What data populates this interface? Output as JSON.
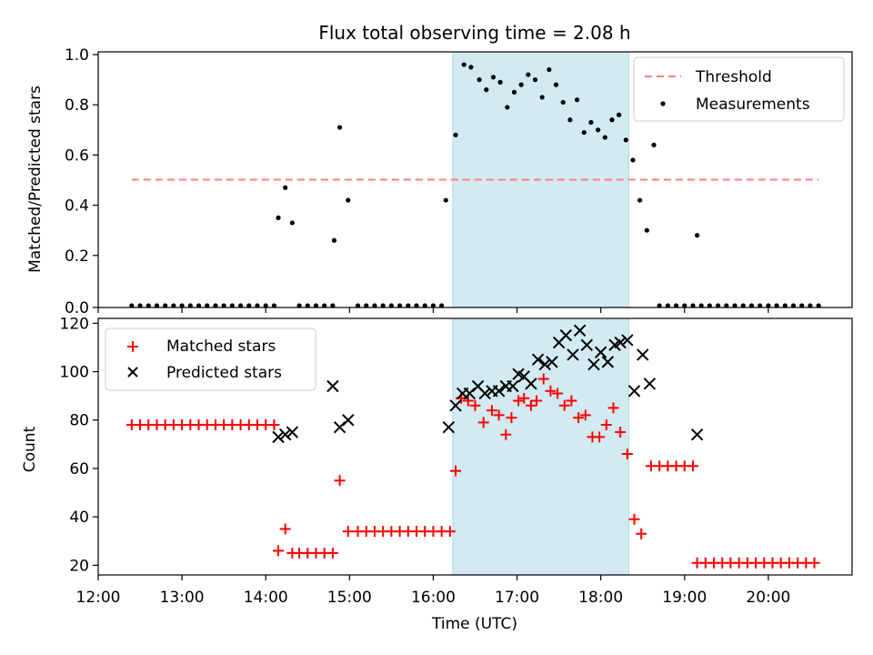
{
  "chart_data": [
    {
      "type": "scatter",
      "title": "Flux total observing time = 2.08 h",
      "xlabel": "",
      "ylabel": "Matched/Predicted stars",
      "xlim": [
        "12:00",
        "21:00"
      ],
      "ylim": [
        0,
        1.0
      ],
      "yticks": [
        "0.0",
        "0.2",
        "0.4",
        "0.6",
        "0.8",
        "1.0"
      ],
      "grid": false,
      "legend": "upper right",
      "highlight_span": [
        "16:14",
        "18:20"
      ],
      "threshold": {
        "name": "Threshold",
        "value": 0.5,
        "from": "12:24",
        "to": "20:36",
        "color": "#ff7f7f"
      },
      "series": [
        {
          "name": "Measurements",
          "color": "#000000",
          "marker": "dot",
          "points": [
            [
              "12:24",
              0
            ],
            [
              "12:30",
              0
            ],
            [
              "12:36",
              0
            ],
            [
              "12:42",
              0
            ],
            [
              "12:48",
              0
            ],
            [
              "12:54",
              0
            ],
            [
              "13:00",
              0
            ],
            [
              "13:06",
              0
            ],
            [
              "13:12",
              0
            ],
            [
              "13:18",
              0
            ],
            [
              "13:24",
              0
            ],
            [
              "13:30",
              0
            ],
            [
              "13:36",
              0
            ],
            [
              "13:42",
              0
            ],
            [
              "13:48",
              0
            ],
            [
              "13:54",
              0
            ],
            [
              "14:00",
              0
            ],
            [
              "14:06",
              0
            ],
            [
              "14:09",
              0.35
            ],
            [
              "14:14",
              0.47
            ],
            [
              "14:19",
              0.33
            ],
            [
              "14:24",
              0
            ],
            [
              "14:30",
              0
            ],
            [
              "14:36",
              0
            ],
            [
              "14:42",
              0
            ],
            [
              "14:48",
              0
            ],
            [
              "14:49",
              0.26
            ],
            [
              "14:53",
              0.71
            ],
            [
              "14:59",
              0.42
            ],
            [
              "15:06",
              0
            ],
            [
              "15:12",
              0
            ],
            [
              "15:18",
              0
            ],
            [
              "15:24",
              0
            ],
            [
              "15:30",
              0
            ],
            [
              "15:36",
              0
            ],
            [
              "15:42",
              0
            ],
            [
              "15:48",
              0
            ],
            [
              "15:54",
              0
            ],
            [
              "16:00",
              0
            ],
            [
              "16:06",
              0
            ],
            [
              "16:09",
              0.42
            ],
            [
              "16:16",
              0.68
            ],
            [
              "16:22",
              0.96
            ],
            [
              "16:27",
              0.95
            ],
            [
              "16:33",
              0.9
            ],
            [
              "16:38",
              0.86
            ],
            [
              "16:43",
              0.91
            ],
            [
              "16:48",
              0.89
            ],
            [
              "16:53",
              0.79
            ],
            [
              "16:58",
              0.85
            ],
            [
              "17:03",
              0.88
            ],
            [
              "17:08",
              0.92
            ],
            [
              "17:13",
              0.9
            ],
            [
              "17:18",
              0.83
            ],
            [
              "17:23",
              0.94
            ],
            [
              "17:28",
              0.88
            ],
            [
              "17:33",
              0.81
            ],
            [
              "17:38",
              0.74
            ],
            [
              "17:43",
              0.82
            ],
            [
              "17:48",
              0.69
            ],
            [
              "17:53",
              0.73
            ],
            [
              "17:58",
              0.7
            ],
            [
              "18:03",
              0.67
            ],
            [
              "18:08",
              0.74
            ],
            [
              "18:13",
              0.76
            ],
            [
              "18:18",
              0.66
            ],
            [
              "18:23",
              0.58
            ],
            [
              "18:28",
              0.42
            ],
            [
              "18:33",
              0.3
            ],
            [
              "18:38",
              0.64
            ],
            [
              "18:42",
              0
            ],
            [
              "18:48",
              0
            ],
            [
              "18:54",
              0
            ],
            [
              "19:00",
              0
            ],
            [
              "19:06",
              0
            ],
            [
              "19:09",
              0.28
            ],
            [
              "19:12",
              0
            ],
            [
              "19:18",
              0
            ],
            [
              "19:24",
              0
            ],
            [
              "19:30",
              0
            ],
            [
              "19:36",
              0
            ],
            [
              "19:42",
              0
            ],
            [
              "19:48",
              0
            ],
            [
              "19:54",
              0
            ],
            [
              "20:00",
              0
            ],
            [
              "20:06",
              0
            ],
            [
              "20:12",
              0
            ],
            [
              "20:18",
              0
            ],
            [
              "20:24",
              0
            ],
            [
              "20:30",
              0
            ],
            [
              "20:36",
              0
            ]
          ]
        }
      ]
    },
    {
      "type": "scatter",
      "title": "",
      "xlabel": "Time (UTC)",
      "ylabel": "Count",
      "xlim": [
        "12:00",
        "21:00"
      ],
      "xticks": [
        "12:00",
        "13:00",
        "14:00",
        "15:00",
        "16:00",
        "17:00",
        "18:00",
        "19:00",
        "20:00"
      ],
      "ylim": [
        16,
        122
      ],
      "yticks": [
        "20",
        "40",
        "60",
        "80",
        "100",
        "120"
      ],
      "grid": false,
      "legend": "upper left",
      "highlight_span": [
        "16:14",
        "18:20"
      ],
      "series": [
        {
          "name": "Matched stars",
          "color": "#ff0000",
          "marker": "plus",
          "points": [
            [
              "12:24",
              78
            ],
            [
              "12:30",
              78
            ],
            [
              "12:36",
              78
            ],
            [
              "12:42",
              78
            ],
            [
              "12:48",
              78
            ],
            [
              "12:54",
              78
            ],
            [
              "13:00",
              78
            ],
            [
              "13:06",
              78
            ],
            [
              "13:12",
              78
            ],
            [
              "13:18",
              78
            ],
            [
              "13:24",
              78
            ],
            [
              "13:30",
              78
            ],
            [
              "13:36",
              78
            ],
            [
              "13:42",
              78
            ],
            [
              "13:48",
              78
            ],
            [
              "13:54",
              78
            ],
            [
              "14:00",
              78
            ],
            [
              "14:06",
              78
            ],
            [
              "14:09",
              26
            ],
            [
              "14:14",
              35
            ],
            [
              "14:19",
              25
            ],
            [
              "14:24",
              25
            ],
            [
              "14:30",
              25
            ],
            [
              "14:36",
              25
            ],
            [
              "14:42",
              25
            ],
            [
              "14:48",
              25
            ],
            [
              "14:53",
              55
            ],
            [
              "14:59",
              34
            ],
            [
              "15:06",
              34
            ],
            [
              "15:12",
              34
            ],
            [
              "15:18",
              34
            ],
            [
              "15:24",
              34
            ],
            [
              "15:30",
              34
            ],
            [
              "15:36",
              34
            ],
            [
              "15:42",
              34
            ],
            [
              "15:48",
              34
            ],
            [
              "15:54",
              34
            ],
            [
              "16:00",
              34
            ],
            [
              "16:06",
              34
            ],
            [
              "16:12",
              34
            ],
            [
              "16:16",
              59
            ],
            [
              "16:20",
              89
            ],
            [
              "16:25",
              88
            ],
            [
              "16:30",
              86
            ],
            [
              "16:36",
              79
            ],
            [
              "16:42",
              84
            ],
            [
              "16:47",
              82
            ],
            [
              "16:52",
              74
            ],
            [
              "16:56",
              81
            ],
            [
              "17:01",
              88
            ],
            [
              "17:05",
              89
            ],
            [
              "17:10",
              86
            ],
            [
              "17:14",
              88
            ],
            [
              "17:19",
              97
            ],
            [
              "17:24",
              92
            ],
            [
              "17:29",
              91
            ],
            [
              "17:34",
              86
            ],
            [
              "17:39",
              88
            ],
            [
              "17:44",
              81
            ],
            [
              "17:49",
              82
            ],
            [
              "17:54",
              73
            ],
            [
              "17:59",
              73
            ],
            [
              "18:04",
              78
            ],
            [
              "18:09",
              85
            ],
            [
              "18:14",
              75
            ],
            [
              "18:19",
              66
            ],
            [
              "18:24",
              39
            ],
            [
              "18:29",
              33
            ],
            [
              "18:36",
              61
            ],
            [
              "18:42",
              61
            ],
            [
              "18:48",
              61
            ],
            [
              "18:54",
              61
            ],
            [
              "19:00",
              61
            ],
            [
              "19:06",
              61
            ],
            [
              "19:09",
              21
            ],
            [
              "19:15",
              21
            ],
            [
              "19:21",
              21
            ],
            [
              "19:27",
              21
            ],
            [
              "19:33",
              21
            ],
            [
              "19:39",
              21
            ],
            [
              "19:45",
              21
            ],
            [
              "19:51",
              21
            ],
            [
              "19:57",
              21
            ],
            [
              "20:03",
              21
            ],
            [
              "20:09",
              21
            ],
            [
              "20:15",
              21
            ],
            [
              "20:21",
              21
            ],
            [
              "20:27",
              21
            ],
            [
              "20:33",
              21
            ]
          ]
        },
        {
          "name": "Predicted stars",
          "color": "#000000",
          "marker": "x",
          "points": [
            [
              "14:09",
              73
            ],
            [
              "14:14",
              74
            ],
            [
              "14:19",
              75
            ],
            [
              "14:48",
              94
            ],
            [
              "14:53",
              77
            ],
            [
              "14:59",
              80
            ],
            [
              "16:11",
              77
            ],
            [
              "16:16",
              86
            ],
            [
              "16:21",
              91
            ],
            [
              "16:26",
              91
            ],
            [
              "16:32",
              94
            ],
            [
              "16:37",
              91
            ],
            [
              "16:42",
              92
            ],
            [
              "16:47",
              92
            ],
            [
              "16:52",
              94
            ],
            [
              "16:57",
              94
            ],
            [
              "17:01",
              99
            ],
            [
              "17:05",
              98
            ],
            [
              "17:10",
              95
            ],
            [
              "17:15",
              105
            ],
            [
              "17:20",
              103
            ],
            [
              "17:25",
              104
            ],
            [
              "17:30",
              112
            ],
            [
              "17:35",
              115
            ],
            [
              "17:40",
              107
            ],
            [
              "17:45",
              117
            ],
            [
              "17:50",
              111
            ],
            [
              "17:55",
              103
            ],
            [
              "18:00",
              108
            ],
            [
              "18:05",
              104
            ],
            [
              "18:10",
              111
            ],
            [
              "18:14",
              112
            ],
            [
              "18:19",
              113
            ],
            [
              "18:24",
              92
            ],
            [
              "18:30",
              107
            ],
            [
              "18:35",
              95
            ],
            [
              "19:09",
              74
            ]
          ]
        }
      ]
    }
  ],
  "colors": {
    "highlight": "#add8e6",
    "threshold": "#ff7f7f",
    "matched": "#ff0000",
    "predicted": "#000000",
    "measurements": "#000000"
  }
}
